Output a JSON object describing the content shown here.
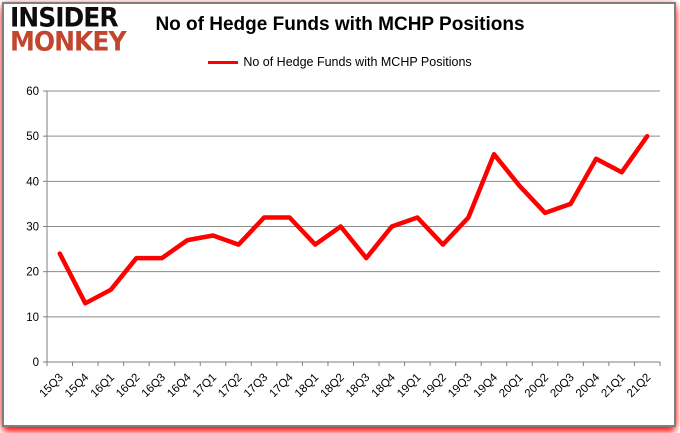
{
  "logo": {
    "line1": "INSIDER",
    "line2": "MONKEY",
    "color1": "#0d0d0d",
    "color2": "#c2452d"
  },
  "header": {
    "title": "No of Hedge Funds with MCHP Positions"
  },
  "legend": {
    "label": "No of Hedge Funds with MCHP Positions",
    "line_color": "#ff0000"
  },
  "chart_data": {
    "type": "line",
    "title": "No of Hedge Funds with MCHP Positions",
    "categories": [
      "15Q3",
      "15Q4",
      "16Q1",
      "16Q2",
      "16Q3",
      "16Q4",
      "17Q1",
      "17Q2",
      "17Q3",
      "17Q4",
      "18Q1",
      "18Q2",
      "18Q3",
      "18Q4",
      "19Q1",
      "19Q2",
      "19Q3",
      "19Q4",
      "20Q1",
      "20Q2",
      "20Q3",
      "20Q4",
      "21Q1",
      "21Q2"
    ],
    "series": [
      {
        "name": "No of Hedge Funds with MCHP Positions",
        "color": "#ff0000",
        "values": [
          24,
          13,
          16,
          23,
          23,
          27,
          28,
          26,
          32,
          32,
          26,
          30,
          23,
          30,
          32,
          26,
          32,
          46,
          39,
          33,
          35,
          45,
          42,
          50
        ]
      }
    ],
    "xlabel": "",
    "ylabel": "",
    "ylim": [
      0,
      60
    ],
    "yticks": [
      0,
      10,
      20,
      30,
      40,
      50,
      60
    ],
    "grid": "horizontal",
    "legend_position": "top-center",
    "x_label_rotation": -45
  },
  "colors": {
    "gridline": "#8c8c8c",
    "axis": "#7f7f7f",
    "tick_label": "#000000",
    "frame_border": "#7f7f7f",
    "glow": "#ff0000",
    "background": "#ffffff"
  }
}
